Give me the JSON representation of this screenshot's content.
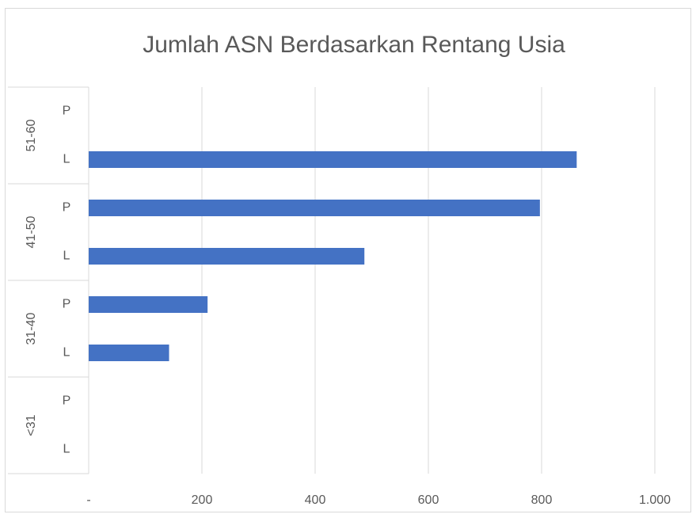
{
  "chart_data": {
    "type": "bar",
    "orientation": "horizontal",
    "title": "Jumlah ASN Berdasarkan Rentang Usia",
    "groups": [
      "<31",
      "31-40",
      "41-50",
      "51-60"
    ],
    "categories": [
      "L",
      "P",
      "L",
      "P",
      "L",
      "P",
      "L",
      "P"
    ],
    "values": [
      0,
      0,
      142,
      210,
      487,
      797,
      862,
      0
    ],
    "color": "#4472c4",
    "xlim": [
      0,
      1000
    ],
    "xticks": [
      {
        "value": 0,
        "label": "-"
      },
      200,
      400,
      600,
      800,
      {
        "value": 1000,
        "label": "1.000"
      }
    ],
    "grid": true
  }
}
